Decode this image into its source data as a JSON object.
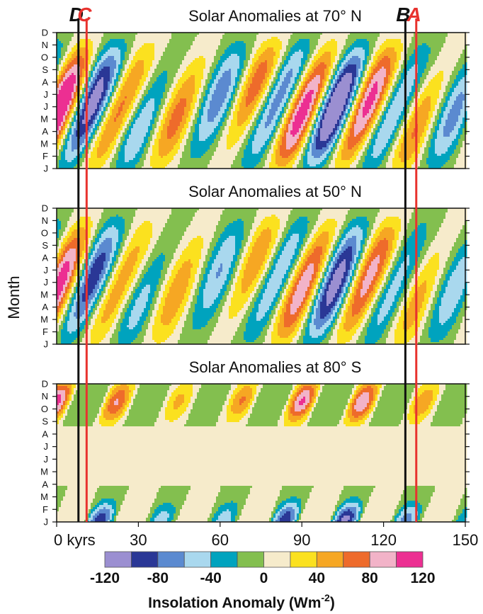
{
  "chart_data": {
    "type": "heatmap",
    "ylabel": "Month",
    "months": [
      "J",
      "F",
      "M",
      "A",
      "M",
      "J",
      "J",
      "A",
      "S",
      "O",
      "N",
      "D"
    ],
    "x_ticks": [
      {
        "v": 0,
        "label": "0 kyrs"
      },
      {
        "v": 30,
        "label": "30"
      },
      {
        "v": 60,
        "label": "60"
      },
      {
        "v": 90,
        "label": "90"
      },
      {
        "v": 120,
        "label": "120"
      },
      {
        "v": 150,
        "label": "150"
      }
    ],
    "xlim": [
      0,
      150
    ],
    "markers": [
      {
        "label": "D",
        "x": 8,
        "color": "#111111"
      },
      {
        "label": "C",
        "x": 11,
        "color": "#e8322e"
      },
      {
        "label": "B",
        "x": 128,
        "color": "#111111"
      },
      {
        "label": "A",
        "x": 132,
        "color": "#e8322e"
      }
    ],
    "panels": [
      {
        "title": "Solar Anomalies at 70° N",
        "latitude": "70 N",
        "amp": 1.0,
        "mode": "north",
        "period_kyr": 22.5,
        "peak_month": 4.3
      },
      {
        "title": "Solar Anomalies at 50° N",
        "latitude": "50 N",
        "amp": 0.82,
        "mode": "north",
        "period_kyr": 22.5,
        "peak_month": 4.3
      },
      {
        "title": "Solar Anomalies at 80° S",
        "latitude": "80 S",
        "amp": 0.95,
        "mode": "south",
        "period_kyr": 22.5,
        "peak_month": 9.6
      }
    ],
    "colorbar": {
      "title": "Insolation Anomaly (Wm",
      "title_sup": "-2",
      "title_end": ")",
      "tick_labels": [
        "-120",
        "-80",
        "-40",
        "0",
        "40",
        "80",
        "120"
      ],
      "bounds": [
        -120,
        -100,
        -80,
        -60,
        -40,
        -20,
        0,
        20,
        40,
        60,
        80,
        100,
        120
      ],
      "colors": [
        "#9b8fd1",
        "#2a3796",
        "#5b8ad0",
        "#a9d8ee",
        "#00a3be",
        "#83bf4f",
        "#f6ebcb",
        "#fbe11f",
        "#f6a723",
        "#ee6b2b",
        "#f2b3c8",
        "#ec2f92"
      ]
    }
  }
}
